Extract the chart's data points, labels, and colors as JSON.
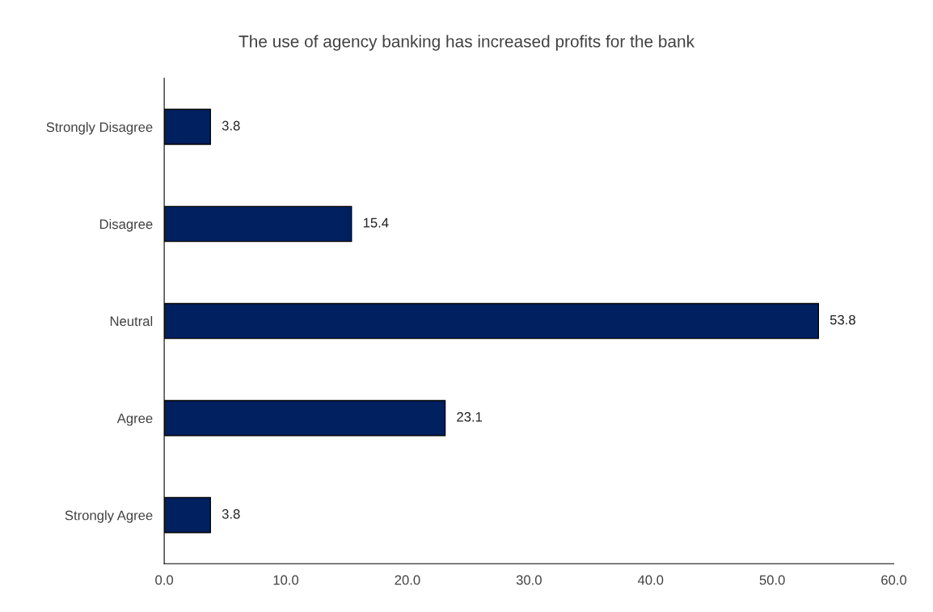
{
  "chart_data": {
    "type": "bar",
    "orientation": "horizontal",
    "title": "The use of agency banking has increased profits for the bank",
    "categories": [
      "Strongly Disagree",
      "Disagree",
      "Neutral",
      "Agree",
      "Strongly Agree"
    ],
    "values": [
      3.8,
      15.4,
      53.8,
      23.1,
      3.8
    ],
    "color": "#002060",
    "xlim": [
      0,
      60
    ],
    "xticks": [
      {
        "value": 0,
        "label": "0.0"
      },
      {
        "value": 10,
        "label": "10.0"
      },
      {
        "value": 20,
        "label": "20.0"
      },
      {
        "value": 30,
        "label": "30.0"
      },
      {
        "value": 40,
        "label": "40.0"
      },
      {
        "value": 50,
        "label": "50.0"
      },
      {
        "value": 60,
        "label": "60.0"
      }
    ],
    "data_labels": true,
    "grid": false,
    "legend": false
  }
}
